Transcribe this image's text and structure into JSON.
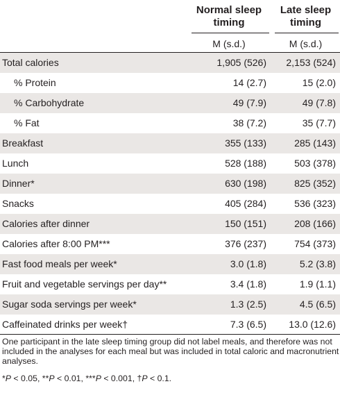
{
  "columns": [
    {
      "title_line1": "Normal sleep",
      "title_line2": "timing",
      "stat": "M (s.d.)"
    },
    {
      "title_line1": "Late sleep",
      "title_line2": "timing",
      "stat": "M (s.d.)"
    }
  ],
  "rows": [
    {
      "label": "Total calories",
      "normal": "1,905 (526)",
      "late": "2,153 (524)",
      "indent": false
    },
    {
      "label": "% Protein",
      "normal": "14 (2.7)",
      "late": "15 (2.0)",
      "indent": true
    },
    {
      "label": "% Carbohydrate",
      "normal": "49 (7.9)",
      "late": "49 (7.8)",
      "indent": true
    },
    {
      "label": "% Fat",
      "normal": "38 (7.2)",
      "late": "35 (7.7)",
      "indent": true
    },
    {
      "label": "Breakfast",
      "normal": "355 (133)",
      "late": "285 (143)",
      "indent": false
    },
    {
      "label": "Lunch",
      "normal": "528 (188)",
      "late": "503 (378)",
      "indent": false
    },
    {
      "label": "Dinner*",
      "normal": "630 (198)",
      "late": "825 (352)",
      "indent": false
    },
    {
      "label": "Snacks",
      "normal": "405 (284)",
      "late": "536 (323)",
      "indent": false
    },
    {
      "label": "Calories after dinner",
      "normal": "150 (151)",
      "late": "208 (166)",
      "indent": false
    },
    {
      "label": "Calories after 8:00 PM***",
      "normal": "376 (237)",
      "late": "754 (373)",
      "indent": false
    },
    {
      "label": "Fast food meals per week*",
      "normal": "3.0 (1.8)",
      "late": "5.2 (3.8)",
      "indent": false
    },
    {
      "label": "Fruit and vegetable servings per day**",
      "normal": "3.4 (1.8)",
      "late": "1.9 (1.1)",
      "indent": false
    },
    {
      "label": "Sugar soda servings per week*",
      "normal": "1.3 (2.5)",
      "late": "4.5 (6.5)",
      "indent": false
    },
    {
      "label": "Caffeinated drinks per week†",
      "normal": "7.3 (6.5)",
      "late": "13.0 (12.6)",
      "indent": false
    }
  ],
  "footnotes": {
    "note1": "One participant in the late sleep timing group did not label meals, and therefore was not included in the analyses for each meal but was included in total caloric and macronutrient analyses.",
    "note2": "*P < 0.05, **P < 0.01, ***P < 0.001, †P < 0.1."
  },
  "colors": {
    "shade": "#eae7e5",
    "text": "#231f20",
    "background": "#ffffff"
  }
}
